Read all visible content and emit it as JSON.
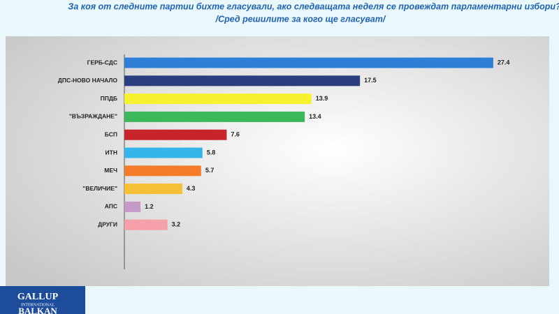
{
  "chart_data": {
    "type": "bar",
    "orientation": "horizontal",
    "title": "За коя от следните партии бихте  гласували,  ако следващата неделя се провеждат парламентарни избори?",
    "subtitle": "/Сред решилите за кого ще гласуват/",
    "categories": [
      "ГЕРБ-СДС",
      "ДПС-НОВО НАЧАЛО",
      "ППДБ",
      "\"ВЪЗРАЖДАНЕ\"",
      "БСП",
      "ИТН",
      "МЕЧ",
      "\"ВЕЛИЧИЕ\"",
      "АПС",
      "ДРУГИ"
    ],
    "values": [
      27.4,
      17.5,
      13.9,
      13.4,
      7.6,
      5.8,
      5.7,
      4.3,
      1.2,
      3.2
    ],
    "colors": [
      "#2f7fd6",
      "#2a3e80",
      "#f7f230",
      "#3cb85a",
      "#c8242c",
      "#35b6ea",
      "#f47b2a",
      "#f5c033",
      "#c59ac8",
      "#f5a0a8"
    ],
    "xlim": [
      0,
      30
    ]
  },
  "logo": {
    "line1": "GALLUP",
    "line2": "INTERNATIONAL",
    "line3": "BALKAN"
  }
}
